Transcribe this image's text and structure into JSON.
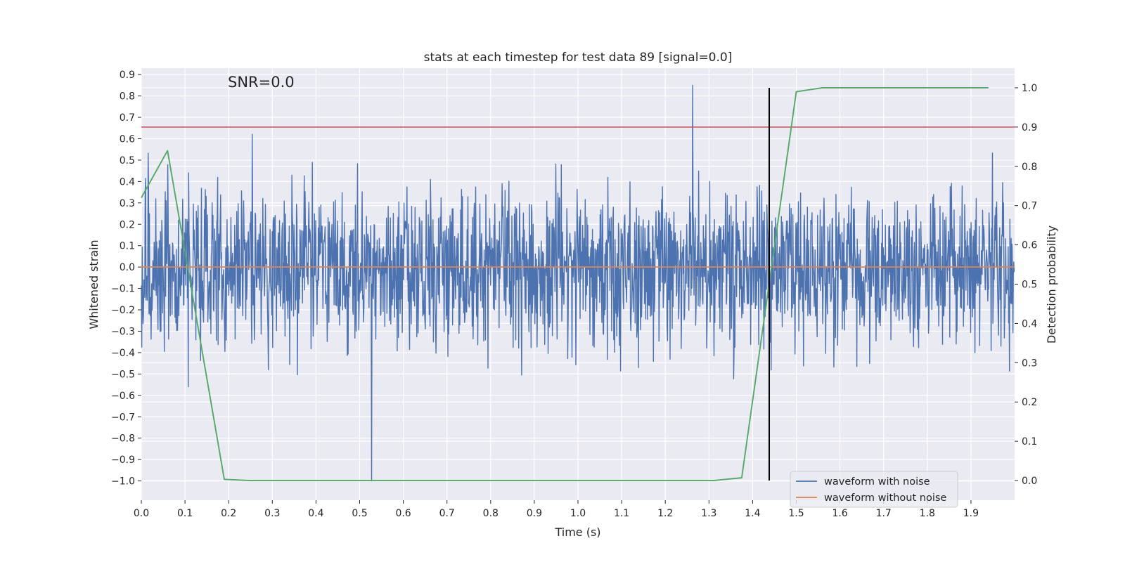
{
  "chart_data": {
    "type": "line",
    "title": "stats at each timestep for test data 89 [signal=0.0]",
    "annotation": "SNR=0.0",
    "xlabel": "Time (s)",
    "ylabel": "Whitened strain",
    "y2label": "Detection probability",
    "xlim": [
      0.0,
      2.0
    ],
    "ylim": [
      -1.09,
      0.93
    ],
    "y2lim": [
      -0.05,
      1.05
    ],
    "xticks": [
      "0.0",
      "0.1",
      "0.2",
      "0.3",
      "0.4",
      "0.5",
      "0.6",
      "0.7",
      "0.8",
      "0.9",
      "1.0",
      "1.1",
      "1.2",
      "1.3",
      "1.4",
      "1.5",
      "1.6",
      "1.7",
      "1.8",
      "1.9"
    ],
    "yticks": [
      "0.9",
      "0.8",
      "0.7",
      "0.6",
      "0.5",
      "0.4",
      "0.3",
      "0.2",
      "0.1",
      "0.0",
      "−0.1",
      "−0.2",
      "−0.3",
      "−0.4",
      "−0.5",
      "−0.6",
      "−0.7",
      "−0.8",
      "−0.9",
      "−1.0"
    ],
    "y2ticks": [
      "1.0",
      "0.9",
      "0.8",
      "0.7",
      "0.6",
      "0.5",
      "0.4",
      "0.3",
      "0.2",
      "0.1",
      "0.0"
    ],
    "grid": true,
    "legend_position": "bottom-right",
    "series": [
      {
        "name": "waveform with noise",
        "color": "#4c72b0",
        "axis": "left",
        "kind": "noise",
        "samples": 2048,
        "amplitude_range": [
          -1.0,
          0.85
        ],
        "mean": 0.0
      },
      {
        "name": "waveform without noise",
        "color": "#dd8452",
        "axis": "left",
        "x": [
          0.0,
          2.0
        ],
        "y": [
          0.0,
          0.0
        ]
      },
      {
        "name": "detection probability",
        "color": "#55a868",
        "axis": "right",
        "x": [
          0.0,
          0.06,
          0.19,
          0.25,
          0.5,
          1.0,
          1.31,
          1.375,
          1.5,
          1.56,
          1.94
        ],
        "y": [
          0.72,
          0.84,
          0.003,
          0.0,
          0.0,
          0.0,
          0.0,
          0.007,
          0.99,
          1.0,
          1.0
        ]
      }
    ],
    "hlines": [
      {
        "name": "threshold",
        "color": "#c44e52",
        "axis": "right",
        "y": 0.9
      }
    ],
    "vlines": [
      {
        "name": "event-time",
        "color": "#000000",
        "x": 1.438,
        "y_from": 0.0,
        "y_to": 1.0,
        "axis": "right"
      }
    ]
  }
}
